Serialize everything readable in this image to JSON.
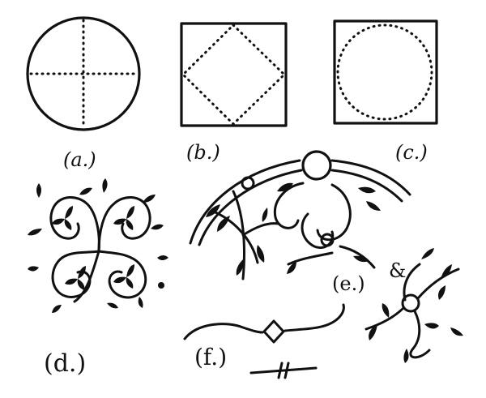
{
  "figure": {
    "panels": [
      {
        "id": "a",
        "label": "(a.)",
        "subject": "circle divided by dotted cross"
      },
      {
        "id": "b",
        "label": "(b.)",
        "subject": "square with dotted inscribed diamond"
      },
      {
        "id": "c",
        "label": "(c.)",
        "subject": "square with dotted inscribed circle"
      },
      {
        "id": "d",
        "label": "(d.)",
        "subject": "four-scroll leaf ornament"
      },
      {
        "id": "e",
        "label": "(e.)",
        "subject": "arched border with scrolling leaves"
      },
      {
        "id": "amp",
        "label": "&",
        "subject": "small branch with ring and leaves"
      },
      {
        "id": "f",
        "label": "(f.)",
        "subject": "curved line with diamond knot"
      }
    ]
  },
  "colors": {
    "ink": "#111111",
    "paper": "#ffffff"
  }
}
